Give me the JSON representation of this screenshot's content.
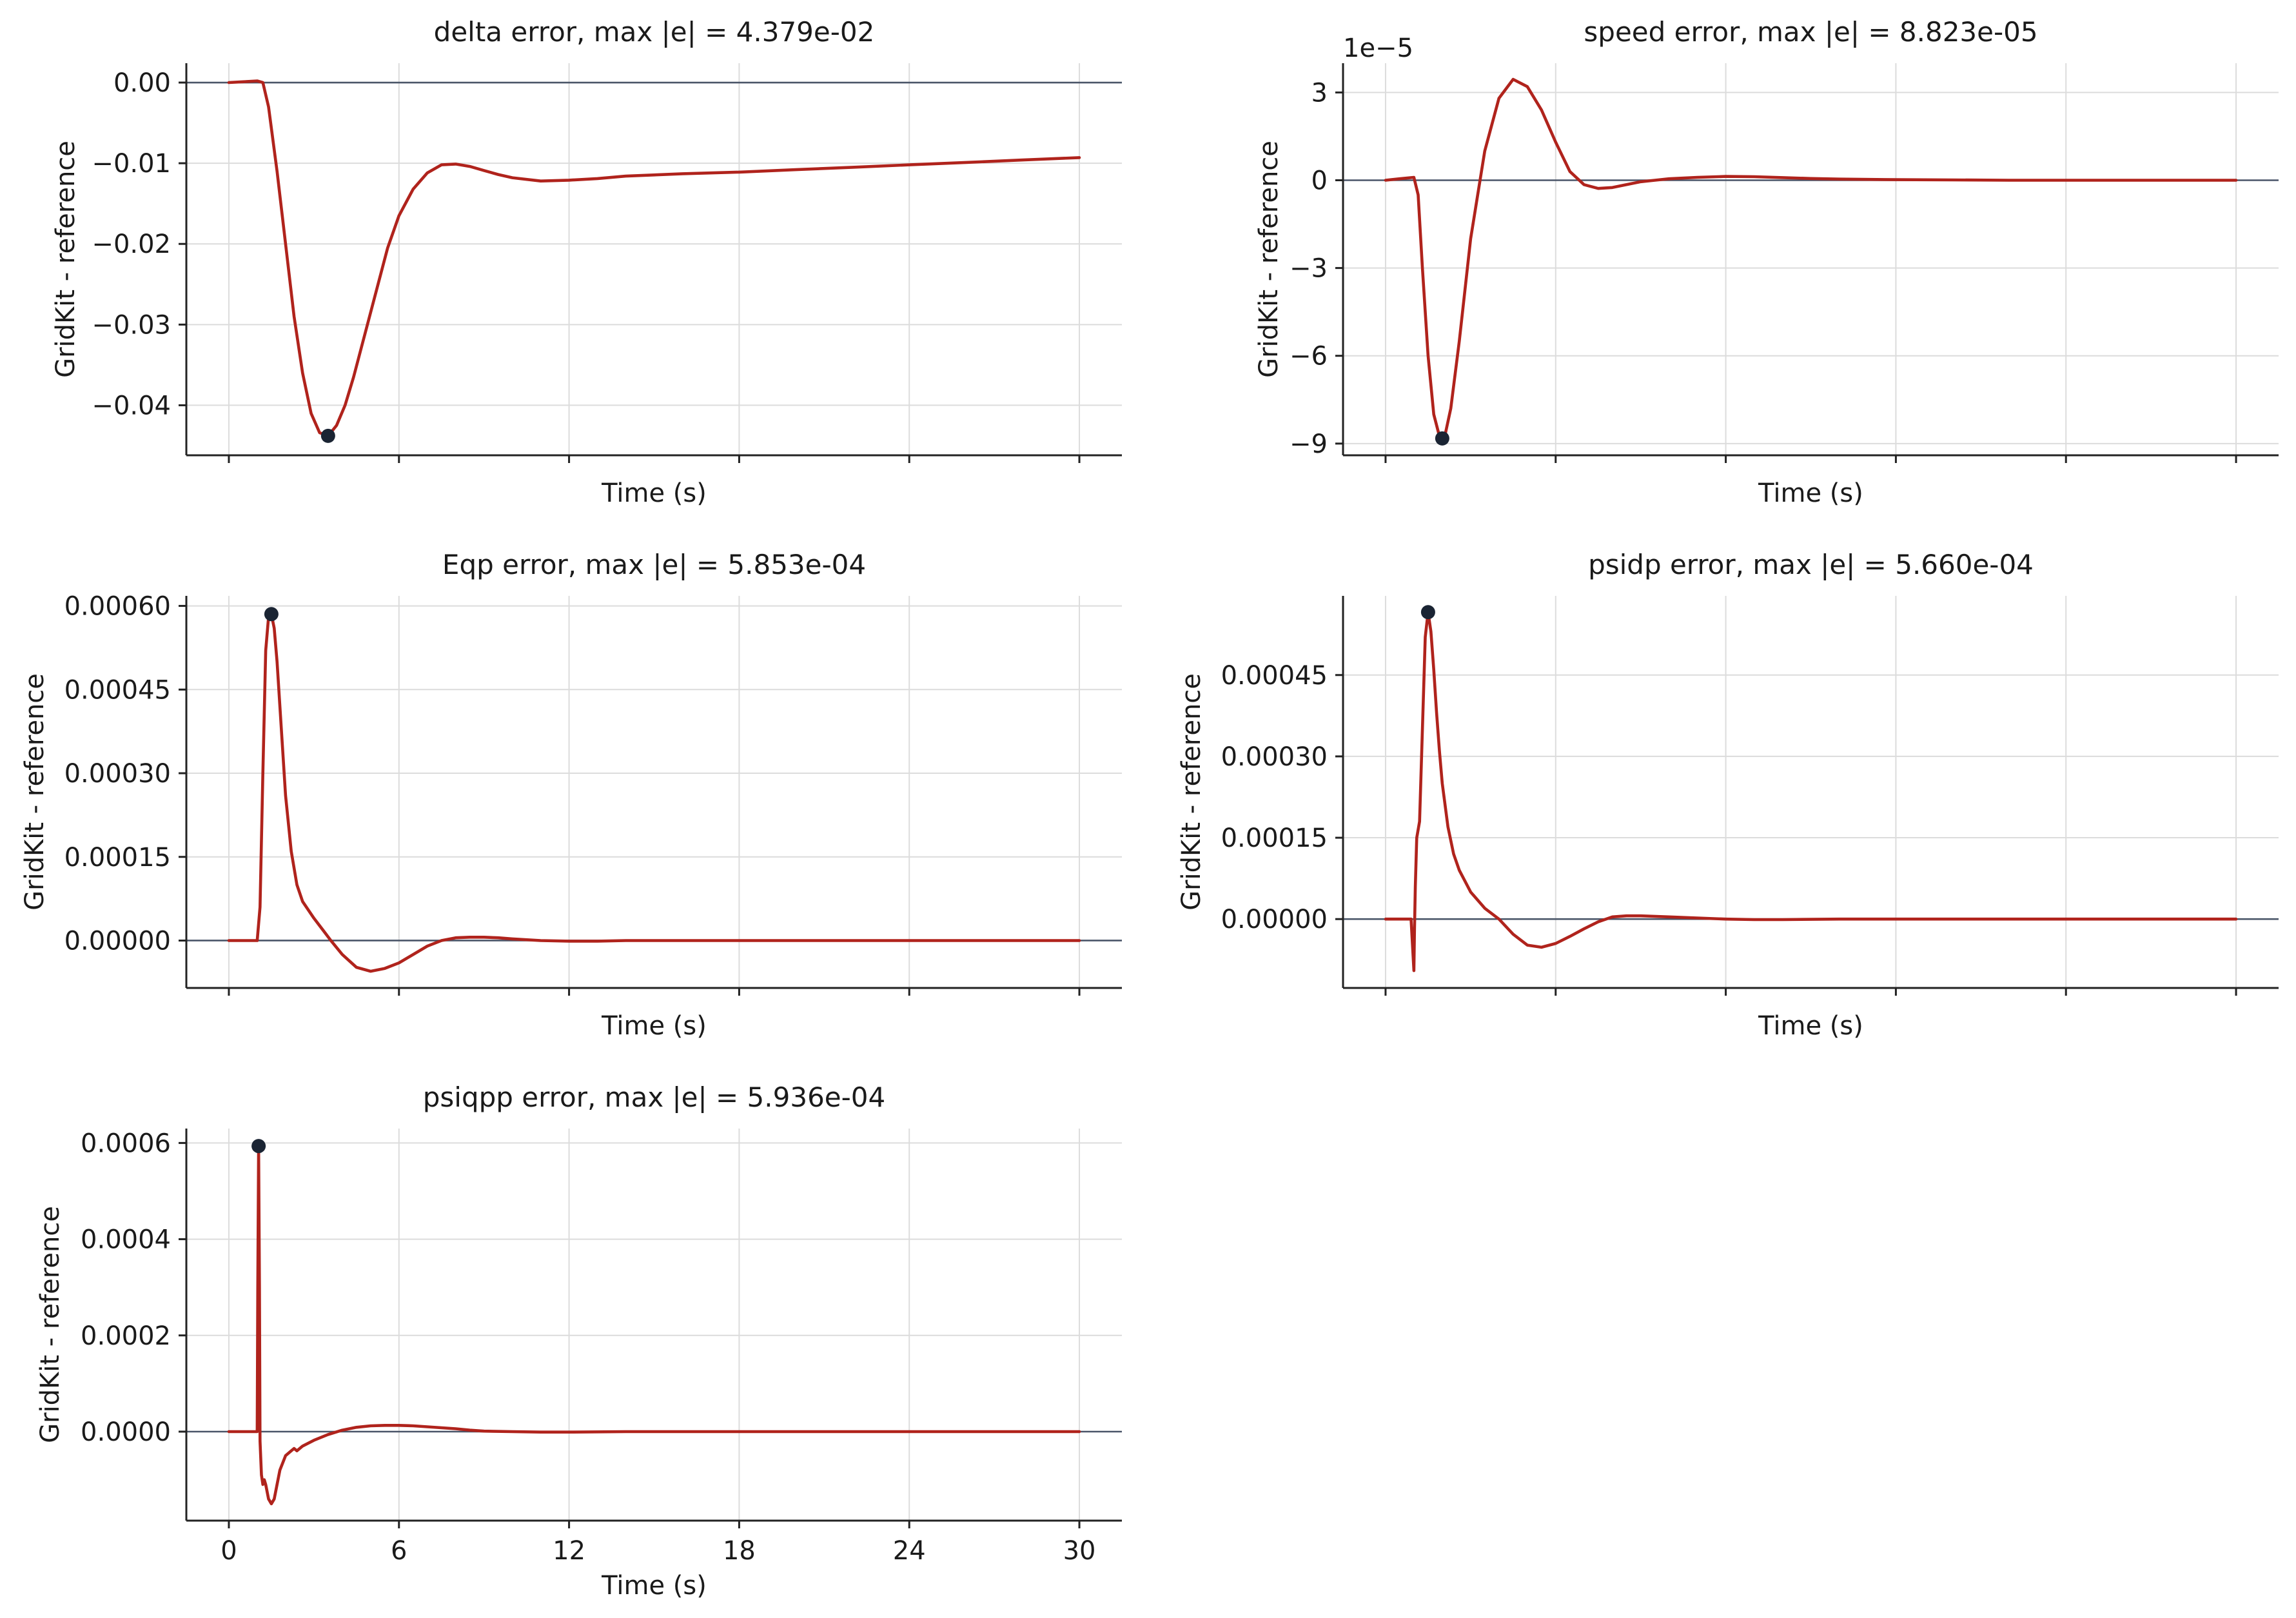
{
  "colors": {
    "error_line": "#b0231c",
    "zero_line": "#4a5568",
    "marker": "#1a2433",
    "grid": "#dcdcdc",
    "axis": "#222222"
  },
  "chart_data": [
    {
      "type": "line",
      "title": "delta error, max |e| = 4.379e-02",
      "xlabel": "Time (s)",
      "ylabel": "GridKit - reference",
      "xlim": [
        -1.5,
        31.5
      ],
      "ylim": [
        -0.0462,
        0.0024
      ],
      "xticks": [
        0,
        6,
        12,
        18,
        24,
        30
      ],
      "xtick_labels": [],
      "yticks": [
        0.0,
        -0.01,
        -0.02,
        -0.03,
        -0.04
      ],
      "ytick_labels": [
        "0.00",
        "−0.01",
        "−0.02",
        "−0.03",
        "−0.04"
      ],
      "offset_label": "",
      "zero_line": true,
      "max_marker": [
        3.5,
        -0.04379
      ],
      "series": [
        {
          "x": [
            0,
            0.5,
            1.0,
            1.2,
            1.4,
            1.7,
            2.0,
            2.3,
            2.6,
            2.9,
            3.2,
            3.5,
            3.8,
            4.1,
            4.4,
            4.7,
            5.0,
            5.3,
            5.6,
            6.0,
            6.5,
            7.0,
            7.5,
            8.0,
            8.5,
            9.0,
            9.5,
            10.0,
            11.0,
            12.0,
            13.0,
            14.0,
            16.0,
            18.0,
            20.0,
            22.0,
            24.0,
            26.0,
            28.0,
            30.0
          ],
          "y": [
            0.0,
            0.0001,
            0.0002,
            0.0,
            -0.003,
            -0.011,
            -0.02,
            -0.029,
            -0.036,
            -0.041,
            -0.0434,
            -0.0438,
            -0.0425,
            -0.04,
            -0.0365,
            -0.0325,
            -0.0285,
            -0.0245,
            -0.0205,
            -0.0165,
            -0.0132,
            -0.0112,
            -0.0102,
            -0.0101,
            -0.0104,
            -0.0109,
            -0.0114,
            -0.0118,
            -0.0122,
            -0.0121,
            -0.0119,
            -0.0116,
            -0.0113,
            -0.0111,
            -0.0108,
            -0.0105,
            -0.0102,
            -0.0099,
            -0.0096,
            -0.0093
          ]
        }
      ]
    },
    {
      "type": "line",
      "title": "speed error, max |e| = 8.823e-05",
      "xlabel": "Time (s)",
      "ylabel": "GridKit - reference",
      "xlim": [
        -1.5,
        31.5
      ],
      "ylim": [
        -9.4,
        4.0
      ],
      "xticks": [
        0,
        6,
        12,
        18,
        24,
        30
      ],
      "xtick_labels": [],
      "yticks": [
        3,
        0,
        -3,
        -6,
        -9
      ],
      "ytick_labels": [
        "3",
        "0",
        "−3",
        "−6",
        "−9"
      ],
      "offset_label": "1e−5",
      "zero_line": true,
      "max_marker": [
        2.0,
        -8.823
      ],
      "series": [
        {
          "x": [
            0,
            0.5,
            1.0,
            1.15,
            1.3,
            1.5,
            1.7,
            1.9,
            2.0,
            2.1,
            2.3,
            2.6,
            3.0,
            3.5,
            4.0,
            4.5,
            5.0,
            5.5,
            6.0,
            6.5,
            7.0,
            7.5,
            8.0,
            8.5,
            9.0,
            9.5,
            10.0,
            11.0,
            12.0,
            13.0,
            14.0,
            15.0,
            16.0,
            18.0,
            20.0,
            22.0,
            24.0,
            26.0,
            28.0,
            30.0
          ],
          "y": [
            0.0,
            0.05,
            0.1,
            -0.5,
            -3.0,
            -6.0,
            -8.0,
            -8.75,
            -8.82,
            -8.7,
            -7.8,
            -5.5,
            -2.0,
            1.0,
            2.8,
            3.45,
            3.2,
            2.4,
            1.3,
            0.3,
            -0.15,
            -0.28,
            -0.25,
            -0.15,
            -0.05,
            0.0,
            0.05,
            0.1,
            0.13,
            0.12,
            0.09,
            0.06,
            0.04,
            0.02,
            0.01,
            0.0,
            0.0,
            0.0,
            0.0,
            0.0
          ]
        }
      ]
    },
    {
      "type": "line",
      "title": "Eqp error, max |e| = 5.853e-04",
      "xlabel": "Time (s)",
      "ylabel": "GridKit - reference",
      "xlim": [
        -1.5,
        31.5
      ],
      "ylim": [
        -8.5e-05,
        0.000618
      ],
      "xticks": [
        0,
        6,
        12,
        18,
        24,
        30
      ],
      "xtick_labels": [],
      "yticks": [
        0.0006,
        0.00045,
        0.0003,
        0.00015,
        0.0
      ],
      "ytick_labels": [
        "0.00060",
        "0.00045",
        "0.00030",
        "0.00015",
        "0.00000"
      ],
      "offset_label": "",
      "zero_line": true,
      "max_marker": [
        1.5,
        0.0005853
      ],
      "series": [
        {
          "x": [
            0,
            0.5,
            1.0,
            1.1,
            1.2,
            1.3,
            1.4,
            1.5,
            1.6,
            1.7,
            1.8,
            1.9,
            2.0,
            2.2,
            2.4,
            2.6,
            2.8,
            3.0,
            3.3,
            3.6,
            4.0,
            4.5,
            5.0,
            5.5,
            6.0,
            6.5,
            7.0,
            7.5,
            8.0,
            8.5,
            9.0,
            9.5,
            10.0,
            11.0,
            12.0,
            13.0,
            14.0,
            16.0,
            18.0,
            20.0,
            24.0,
            30.0
          ],
          "y": [
            0.0,
            0.0,
            0.0,
            6e-05,
            0.0003,
            0.00052,
            0.00058,
            0.000585,
            0.00056,
            0.0005,
            0.00042,
            0.00034,
            0.00026,
            0.00016,
            0.0001,
            7e-05,
            5.5e-05,
            4e-05,
            2e-05,
            0.0,
            -2.5e-05,
            -4.8e-05,
            -5.5e-05,
            -5e-05,
            -4e-05,
            -2.5e-05,
            -1e-05,
            0.0,
            5e-06,
            6e-06,
            6e-06,
            5e-06,
            3e-06,
            0.0,
            -1e-06,
            -1e-06,
            0.0,
            0.0,
            0.0,
            0.0,
            0.0,
            0.0
          ]
        }
      ]
    },
    {
      "type": "line",
      "title": "psidp error, max |e| = 5.660e-04",
      "xlabel": "Time (s)",
      "ylabel": "GridKit - reference",
      "xlim": [
        -1.5,
        31.5
      ],
      "ylim": [
        -0.000127,
        0.000596
      ],
      "xticks": [
        0,
        6,
        12,
        18,
        24,
        30
      ],
      "xtick_labels": [],
      "yticks": [
        0.00045,
        0.0003,
        0.00015,
        0.0
      ],
      "ytick_labels": [
        "0.00045",
        "0.00030",
        "0.00015",
        "0.00000"
      ],
      "offset_label": "",
      "zero_line": true,
      "max_marker": [
        1.5,
        0.000566
      ],
      "series": [
        {
          "x": [
            0,
            0.5,
            0.9,
            1.0,
            1.02,
            1.05,
            1.1,
            1.2,
            1.3,
            1.4,
            1.5,
            1.6,
            1.7,
            1.8,
            1.9,
            2.0,
            2.2,
            2.4,
            2.6,
            2.8,
            3.0,
            3.5,
            4.0,
            4.5,
            5.0,
            5.5,
            6.0,
            6.5,
            7.0,
            7.5,
            8.0,
            8.5,
            9.0,
            10.0,
            11.0,
            12.0,
            13.0,
            14.0,
            16.0,
            18.0,
            20.0,
            24.0,
            30.0
          ],
          "y": [
            0.0,
            0.0,
            0.0,
            -9.5e-05,
            -2e-05,
            6e-05,
            0.00015,
            0.00018,
            0.00035,
            0.00052,
            0.000566,
            0.00053,
            0.00046,
            0.00038,
            0.00031,
            0.00025,
            0.00017,
            0.00012,
            9e-05,
            7e-05,
            5e-05,
            2e-05,
            0.0,
            -2.8e-05,
            -4.8e-05,
            -5.2e-05,
            -4.5e-05,
            -3.2e-05,
            -1.8e-05,
            -5e-06,
            4e-06,
            6e-06,
            6e-06,
            4e-06,
            2e-06,
            0.0,
            -1e-06,
            -1e-06,
            0.0,
            0.0,
            0.0,
            0.0,
            0.0
          ]
        }
      ]
    },
    {
      "type": "line",
      "title": "psiqpp error, max |e| = 5.936e-04",
      "xlabel": "Time (s)",
      "ylabel": "GridKit - reference",
      "xlim": [
        -1.5,
        31.5
      ],
      "ylim": [
        -0.000185,
        0.00063
      ],
      "xticks": [
        0,
        6,
        12,
        18,
        24,
        30
      ],
      "xtick_labels": [
        "0",
        "6",
        "12",
        "18",
        "24",
        "30"
      ],
      "yticks": [
        0.0006,
        0.0004,
        0.0002,
        0.0
      ],
      "ytick_labels": [
        "0.0006",
        "0.0004",
        "0.0002",
        "0.0000"
      ],
      "offset_label": "",
      "zero_line": true,
      "max_marker": [
        1.05,
        0.0005936
      ],
      "series": [
        {
          "x": [
            0,
            0.5,
            1.0,
            1.02,
            1.05,
            1.08,
            1.1,
            1.15,
            1.2,
            1.25,
            1.3,
            1.4,
            1.5,
            1.6,
            1.7,
            1.8,
            2.0,
            2.2,
            2.3,
            2.4,
            2.6,
            3.0,
            3.5,
            4.0,
            4.5,
            5.0,
            5.5,
            6.0,
            6.5,
            7.0,
            7.5,
            8.0,
            8.5,
            9.0,
            10.0,
            11.0,
            12.0,
            14.0,
            16.0,
            18.0,
            24.0,
            30.0
          ],
          "y": [
            0.0,
            0.0,
            0.0,
            0.0003,
            0.000594,
            0.0003,
            -2e-05,
            -9e-05,
            -0.00011,
            -0.0001,
            -0.00011,
            -0.00014,
            -0.00015,
            -0.00014,
            -0.00011,
            -8e-05,
            -5e-05,
            -4e-05,
            -3.5e-05,
            -4e-05,
            -3e-05,
            -1.8e-05,
            -6e-06,
            3e-06,
            9e-06,
            1.2e-05,
            1.3e-05,
            1.3e-05,
            1.2e-05,
            1e-05,
            8e-06,
            6e-06,
            3e-06,
            1e-06,
            0.0,
            -1e-06,
            -1e-06,
            0.0,
            0.0,
            0.0,
            0.0,
            0.0
          ]
        }
      ]
    }
  ]
}
